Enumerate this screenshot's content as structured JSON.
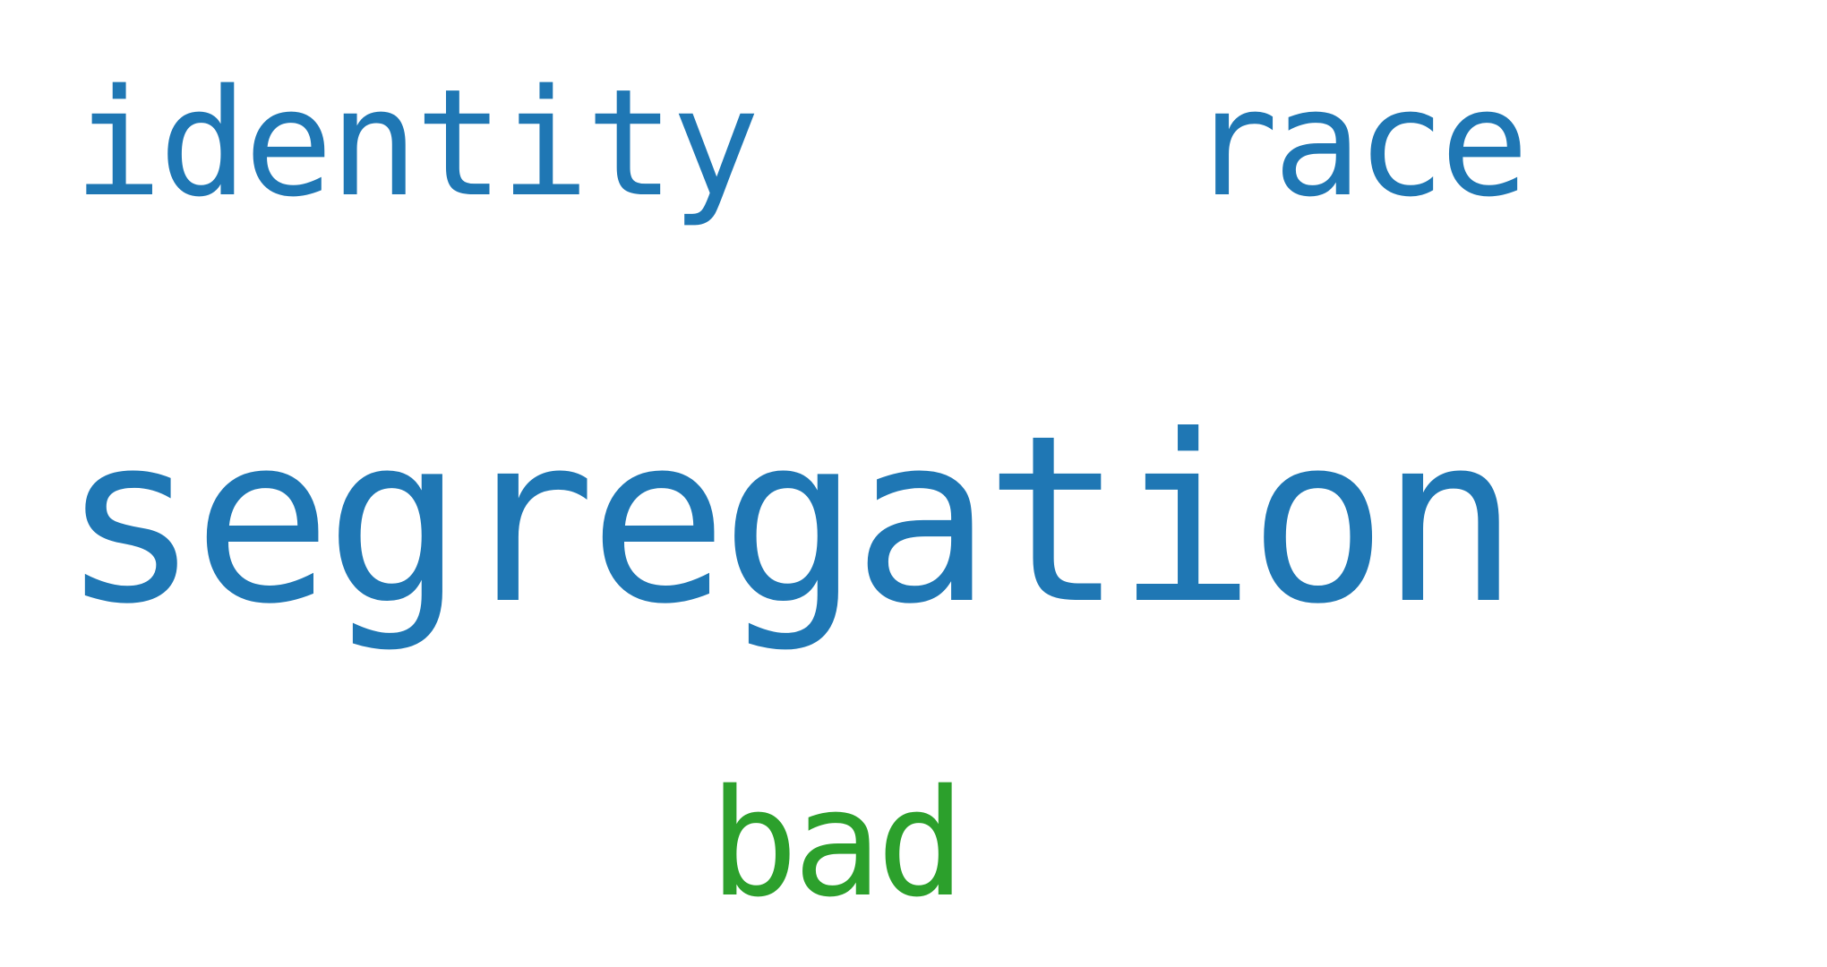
{
  "word_cloud": {
    "words": [
      {
        "text": "identity",
        "color": "#1f77b4"
      },
      {
        "text": "race",
        "color": "#1f77b4"
      },
      {
        "text": "segregation",
        "color": "#1f77b4"
      },
      {
        "text": "bad",
        "color": "#2ca02c"
      }
    ]
  }
}
